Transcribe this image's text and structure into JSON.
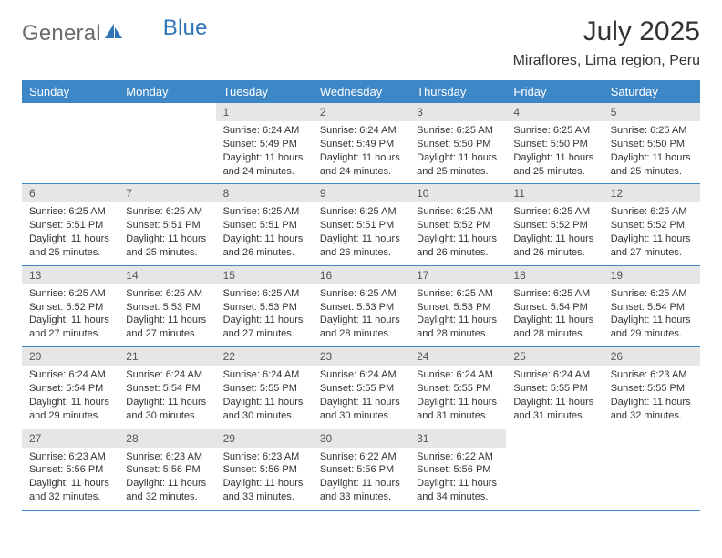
{
  "logo": {
    "word1": "General",
    "word2": "Blue"
  },
  "title": "July 2025",
  "location": "Miraflores, Lima region, Peru",
  "colors": {
    "header_bg": "#3d87c7",
    "header_fg": "#ffffff",
    "daynum_bg": "#e6e6e6",
    "border": "#3d87c7",
    "logo_gray": "#6b6b6b",
    "logo_blue": "#2f76b8"
  },
  "weekdays": [
    "Sunday",
    "Monday",
    "Tuesday",
    "Wednesday",
    "Thursday",
    "Friday",
    "Saturday"
  ],
  "weeks": [
    [
      {
        "n": "",
        "sr": "",
        "ss": "",
        "dl": ""
      },
      {
        "n": "",
        "sr": "",
        "ss": "",
        "dl": ""
      },
      {
        "n": "1",
        "sr": "Sunrise: 6:24 AM",
        "ss": "Sunset: 5:49 PM",
        "dl": "Daylight: 11 hours and 24 minutes."
      },
      {
        "n": "2",
        "sr": "Sunrise: 6:24 AM",
        "ss": "Sunset: 5:49 PM",
        "dl": "Daylight: 11 hours and 24 minutes."
      },
      {
        "n": "3",
        "sr": "Sunrise: 6:25 AM",
        "ss": "Sunset: 5:50 PM",
        "dl": "Daylight: 11 hours and 25 minutes."
      },
      {
        "n": "4",
        "sr": "Sunrise: 6:25 AM",
        "ss": "Sunset: 5:50 PM",
        "dl": "Daylight: 11 hours and 25 minutes."
      },
      {
        "n": "5",
        "sr": "Sunrise: 6:25 AM",
        "ss": "Sunset: 5:50 PM",
        "dl": "Daylight: 11 hours and 25 minutes."
      }
    ],
    [
      {
        "n": "6",
        "sr": "Sunrise: 6:25 AM",
        "ss": "Sunset: 5:51 PM",
        "dl": "Daylight: 11 hours and 25 minutes."
      },
      {
        "n": "7",
        "sr": "Sunrise: 6:25 AM",
        "ss": "Sunset: 5:51 PM",
        "dl": "Daylight: 11 hours and 25 minutes."
      },
      {
        "n": "8",
        "sr": "Sunrise: 6:25 AM",
        "ss": "Sunset: 5:51 PM",
        "dl": "Daylight: 11 hours and 26 minutes."
      },
      {
        "n": "9",
        "sr": "Sunrise: 6:25 AM",
        "ss": "Sunset: 5:51 PM",
        "dl": "Daylight: 11 hours and 26 minutes."
      },
      {
        "n": "10",
        "sr": "Sunrise: 6:25 AM",
        "ss": "Sunset: 5:52 PM",
        "dl": "Daylight: 11 hours and 26 minutes."
      },
      {
        "n": "11",
        "sr": "Sunrise: 6:25 AM",
        "ss": "Sunset: 5:52 PM",
        "dl": "Daylight: 11 hours and 26 minutes."
      },
      {
        "n": "12",
        "sr": "Sunrise: 6:25 AM",
        "ss": "Sunset: 5:52 PM",
        "dl": "Daylight: 11 hours and 27 minutes."
      }
    ],
    [
      {
        "n": "13",
        "sr": "Sunrise: 6:25 AM",
        "ss": "Sunset: 5:52 PM",
        "dl": "Daylight: 11 hours and 27 minutes."
      },
      {
        "n": "14",
        "sr": "Sunrise: 6:25 AM",
        "ss": "Sunset: 5:53 PM",
        "dl": "Daylight: 11 hours and 27 minutes."
      },
      {
        "n": "15",
        "sr": "Sunrise: 6:25 AM",
        "ss": "Sunset: 5:53 PM",
        "dl": "Daylight: 11 hours and 27 minutes."
      },
      {
        "n": "16",
        "sr": "Sunrise: 6:25 AM",
        "ss": "Sunset: 5:53 PM",
        "dl": "Daylight: 11 hours and 28 minutes."
      },
      {
        "n": "17",
        "sr": "Sunrise: 6:25 AM",
        "ss": "Sunset: 5:53 PM",
        "dl": "Daylight: 11 hours and 28 minutes."
      },
      {
        "n": "18",
        "sr": "Sunrise: 6:25 AM",
        "ss": "Sunset: 5:54 PM",
        "dl": "Daylight: 11 hours and 28 minutes."
      },
      {
        "n": "19",
        "sr": "Sunrise: 6:25 AM",
        "ss": "Sunset: 5:54 PM",
        "dl": "Daylight: 11 hours and 29 minutes."
      }
    ],
    [
      {
        "n": "20",
        "sr": "Sunrise: 6:24 AM",
        "ss": "Sunset: 5:54 PM",
        "dl": "Daylight: 11 hours and 29 minutes."
      },
      {
        "n": "21",
        "sr": "Sunrise: 6:24 AM",
        "ss": "Sunset: 5:54 PM",
        "dl": "Daylight: 11 hours and 30 minutes."
      },
      {
        "n": "22",
        "sr": "Sunrise: 6:24 AM",
        "ss": "Sunset: 5:55 PM",
        "dl": "Daylight: 11 hours and 30 minutes."
      },
      {
        "n": "23",
        "sr": "Sunrise: 6:24 AM",
        "ss": "Sunset: 5:55 PM",
        "dl": "Daylight: 11 hours and 30 minutes."
      },
      {
        "n": "24",
        "sr": "Sunrise: 6:24 AM",
        "ss": "Sunset: 5:55 PM",
        "dl": "Daylight: 11 hours and 31 minutes."
      },
      {
        "n": "25",
        "sr": "Sunrise: 6:24 AM",
        "ss": "Sunset: 5:55 PM",
        "dl": "Daylight: 11 hours and 31 minutes."
      },
      {
        "n": "26",
        "sr": "Sunrise: 6:23 AM",
        "ss": "Sunset: 5:55 PM",
        "dl": "Daylight: 11 hours and 32 minutes."
      }
    ],
    [
      {
        "n": "27",
        "sr": "Sunrise: 6:23 AM",
        "ss": "Sunset: 5:56 PM",
        "dl": "Daylight: 11 hours and 32 minutes."
      },
      {
        "n": "28",
        "sr": "Sunrise: 6:23 AM",
        "ss": "Sunset: 5:56 PM",
        "dl": "Daylight: 11 hours and 32 minutes."
      },
      {
        "n": "29",
        "sr": "Sunrise: 6:23 AM",
        "ss": "Sunset: 5:56 PM",
        "dl": "Daylight: 11 hours and 33 minutes."
      },
      {
        "n": "30",
        "sr": "Sunrise: 6:22 AM",
        "ss": "Sunset: 5:56 PM",
        "dl": "Daylight: 11 hours and 33 minutes."
      },
      {
        "n": "31",
        "sr": "Sunrise: 6:22 AM",
        "ss": "Sunset: 5:56 PM",
        "dl": "Daylight: 11 hours and 34 minutes."
      },
      {
        "n": "",
        "sr": "",
        "ss": "",
        "dl": ""
      },
      {
        "n": "",
        "sr": "",
        "ss": "",
        "dl": ""
      }
    ]
  ]
}
